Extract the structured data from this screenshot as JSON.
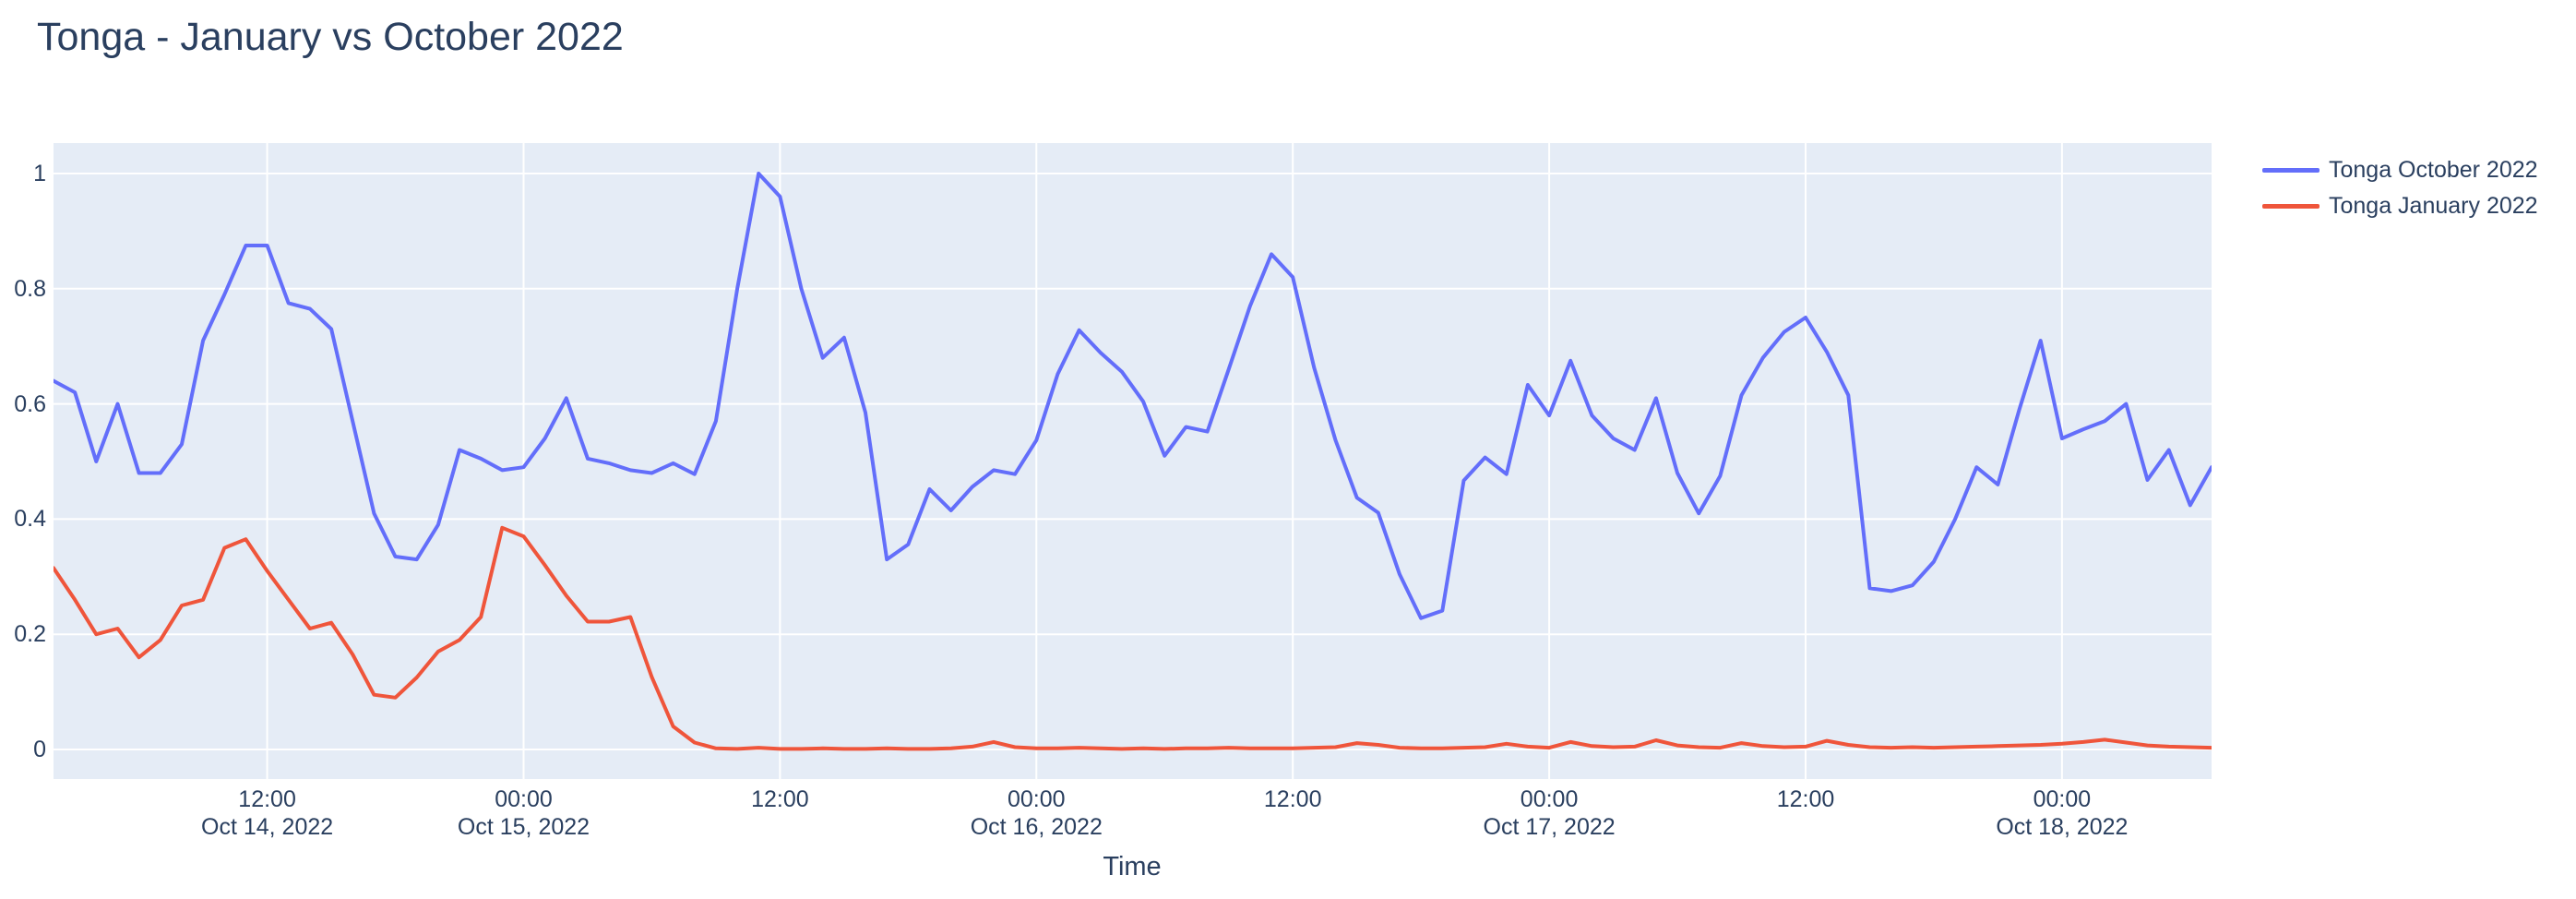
{
  "title": "Tonga - January vs October 2022",
  "axes": {
    "x_title": "Time",
    "y_tick_labels": [
      "0",
      "0.2",
      "0.4",
      "0.6",
      "0.8",
      "1"
    ]
  },
  "legend": {
    "items": [
      {
        "label": "Tonga October 2022",
        "color": "#636EFA"
      },
      {
        "label": "Tonga January 2022",
        "color": "#EF553B"
      }
    ]
  },
  "colors": {
    "plot_background": "#E5ECF6",
    "gridline": "#FFFFFF",
    "text": "#2a3f5f",
    "series_october": "#636EFA",
    "series_january": "#EF553B"
  },
  "chart_data": {
    "type": "line",
    "title": "Tonga - January vs October 2022",
    "xlabel": "Time",
    "ylabel": "",
    "x_start": "2022-10-14 02:00",
    "x_end": "2022-10-18 07:00",
    "x_step_hours": 1,
    "ylim": [
      -0.052,
      1.052
    ],
    "y_tick_values": [
      0,
      0.2,
      0.4,
      0.6,
      0.8,
      1
    ],
    "grid": true,
    "legend_position": "top-right-outside",
    "x_ticks": [
      {
        "hour_offset": 10,
        "time": "12:00",
        "date": "Oct 14, 2022"
      },
      {
        "hour_offset": 22,
        "time": "00:00",
        "date": "Oct 15, 2022"
      },
      {
        "hour_offset": 34,
        "time": "12:00",
        "date": ""
      },
      {
        "hour_offset": 46,
        "time": "00:00",
        "date": "Oct 16, 2022"
      },
      {
        "hour_offset": 58,
        "time": "12:00",
        "date": ""
      },
      {
        "hour_offset": 70,
        "time": "00:00",
        "date": "Oct 17, 2022"
      },
      {
        "hour_offset": 82,
        "time": "12:00",
        "date": ""
      },
      {
        "hour_offset": 94,
        "time": "00:00",
        "date": "Oct 18, 2022"
      }
    ],
    "series": [
      {
        "name": "Tonga October 2022",
        "color": "#636EFA",
        "values": [
          0.64,
          0.62,
          0.5,
          0.6,
          0.48,
          0.48,
          0.53,
          0.71,
          0.79,
          0.875,
          0.875,
          0.775,
          0.765,
          0.73,
          0.57,
          0.41,
          0.335,
          0.33,
          0.39,
          0.52,
          0.505,
          0.485,
          0.49,
          0.54,
          0.61,
          0.505,
          0.497,
          0.485,
          0.48,
          0.497,
          0.478,
          0.57,
          0.8,
          1.0,
          0.96,
          0.8,
          0.68,
          0.715,
          0.585,
          0.33,
          0.356,
          0.452,
          0.415,
          0.456,
          0.485,
          0.478,
          0.537,
          0.652,
          0.728,
          0.689,
          0.656,
          0.604,
          0.51,
          0.56,
          0.552,
          0.66,
          0.77,
          0.86,
          0.82,
          0.663,
          0.537,
          0.437,
          0.411,
          0.304,
          0.228,
          0.241,
          0.467,
          0.507,
          0.478,
          0.633,
          0.58,
          0.675,
          0.58,
          0.54,
          0.52,
          0.61,
          0.48,
          0.41,
          0.475,
          0.615,
          0.68,
          0.725,
          0.75,
          0.69,
          0.615,
          0.28,
          0.275,
          0.285,
          0.326,
          0.4,
          0.49,
          0.46,
          0.59,
          0.71,
          0.54,
          0.556,
          0.57,
          0.6,
          0.468,
          0.52,
          0.424,
          0.49
        ]
      },
      {
        "name": "Tonga January 2022",
        "color": "#EF553B",
        "values": [
          0.315,
          0.26,
          0.2,
          0.21,
          0.16,
          0.19,
          0.25,
          0.26,
          0.35,
          0.365,
          0.31,
          0.26,
          0.21,
          0.22,
          0.165,
          0.095,
          0.09,
          0.125,
          0.17,
          0.19,
          0.23,
          0.385,
          0.37,
          0.32,
          0.267,
          0.222,
          0.222,
          0.23,
          0.126,
          0.04,
          0.012,
          0.002,
          0.001,
          0.003,
          0.001,
          0.001,
          0.002,
          0.001,
          0.001,
          0.002,
          0.001,
          0.001,
          0.002,
          0.005,
          0.013,
          0.004,
          0.002,
          0.002,
          0.003,
          0.002,
          0.001,
          0.002,
          0.001,
          0.002,
          0.002,
          0.003,
          0.002,
          0.002,
          0.002,
          0.003,
          0.004,
          0.011,
          0.008,
          0.003,
          0.002,
          0.002,
          0.003,
          0.004,
          0.01,
          0.005,
          0.003,
          0.013,
          0.006,
          0.004,
          0.005,
          0.016,
          0.007,
          0.004,
          0.003,
          0.011,
          0.006,
          0.004,
          0.005,
          0.015,
          0.008,
          0.004,
          0.003,
          0.004,
          0.003,
          0.004,
          0.005,
          0.006,
          0.007,
          0.008,
          0.01,
          0.013,
          0.017,
          0.012,
          0.007,
          0.005,
          0.004,
          0.003
        ]
      }
    ]
  }
}
